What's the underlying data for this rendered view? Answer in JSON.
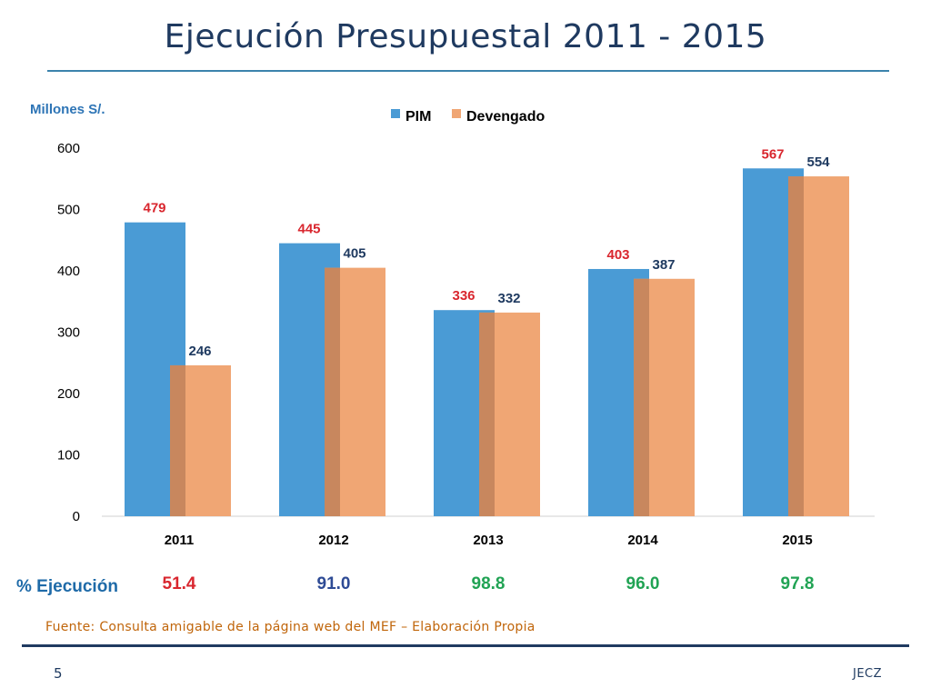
{
  "slide": {
    "title": "Ejecución Presupuestal 2011 - 2015",
    "units_label": "Millones S/.",
    "pct_title": "% Ejecución",
    "pct_values": [
      "51.4",
      "91.0",
      "98.8",
      "96.0",
      "97.8"
    ],
    "pct_colors": [
      "#d9262e",
      "#2e4b95",
      "#21a354",
      "#21a354",
      "#21a354"
    ],
    "source": "Fuente: Consulta amigable de la página web del MEF – Elaboración Propia",
    "slide_number": "5",
    "author": "JECZ"
  },
  "chart_data": {
    "type": "bar",
    "categories": [
      "2011",
      "2012",
      "2013",
      "2014",
      "2015"
    ],
    "series": [
      {
        "name": "PIM",
        "values": [
          479,
          445,
          336,
          403,
          567
        ],
        "color": "#4a9bd5",
        "label_color": "#d9262e"
      },
      {
        "name": "Devengado",
        "values": [
          246,
          405,
          332,
          387,
          554
        ],
        "color": "#f0a674",
        "label_color": "#1f3a60"
      }
    ],
    "ylim": [
      0,
      600
    ],
    "yticks": [
      0,
      100,
      200,
      300,
      400,
      500,
      600
    ],
    "title": "",
    "xlabel": "",
    "ylabel": "",
    "grid": false,
    "legend_position": "top-center",
    "overlap_color": "#c8875e"
  }
}
